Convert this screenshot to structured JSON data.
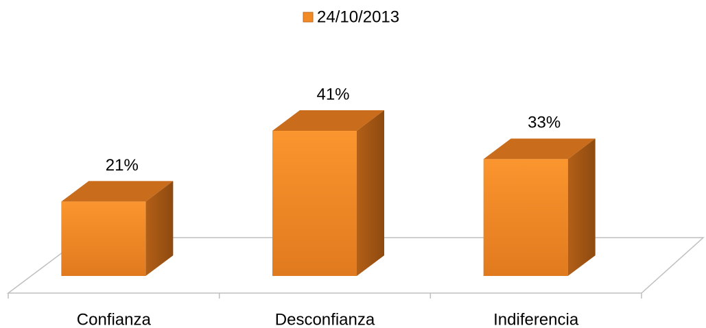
{
  "chart_data": {
    "type": "bar3d",
    "categories": [
      "Confianza",
      "Desconfianza",
      "Indiferencia"
    ],
    "series": [
      {
        "name": "24/10/2013",
        "color": "#f28a26",
        "values": [
          21,
          41,
          33
        ],
        "value_labels": [
          "21%",
          "41%",
          "33%"
        ]
      }
    ],
    "legend": "top"
  }
}
